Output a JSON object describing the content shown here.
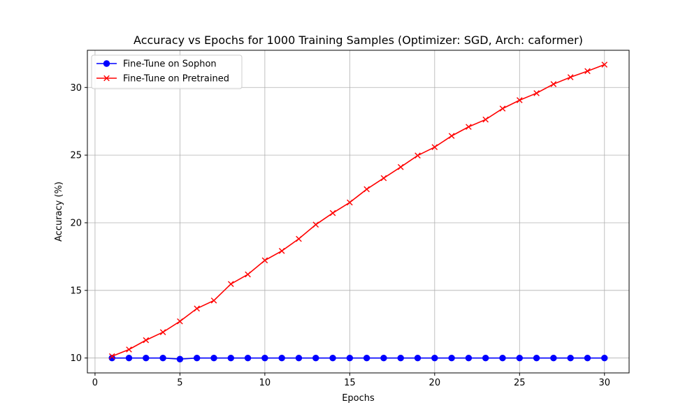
{
  "chart_data": {
    "type": "line",
    "title": "Accuracy vs Epochs for 1000 Training Samples (Optimizer: SGD, Arch: caformer)",
    "xlabel": "Epochs",
    "ylabel": "Accuracy (%)",
    "xlim": [
      -0.45,
      31.45
    ],
    "ylim": [
      8.9,
      32.75
    ],
    "xticks": [
      0,
      5,
      10,
      15,
      20,
      25,
      30
    ],
    "yticks": [
      10,
      15,
      20,
      25,
      30
    ],
    "grid": true,
    "legend_position": "top-left",
    "x": [
      1,
      2,
      3,
      4,
      5,
      6,
      7,
      8,
      9,
      10,
      11,
      12,
      13,
      14,
      15,
      16,
      17,
      18,
      19,
      20,
      21,
      22,
      23,
      24,
      25,
      26,
      27,
      28,
      29,
      30
    ],
    "series": [
      {
        "name": "Fine-Tune on Sophon",
        "color": "#0000ff",
        "marker": "circle",
        "values": [
          10.0,
          10.0,
          10.0,
          10.0,
          9.92,
          10.0,
          10.0,
          10.0,
          10.0,
          10.0,
          10.0,
          10.0,
          10.0,
          10.0,
          10.0,
          10.0,
          10.0,
          10.0,
          10.0,
          10.0,
          10.0,
          10.0,
          10.0,
          10.0,
          10.0,
          10.0,
          10.0,
          10.0,
          10.0,
          10.0
        ]
      },
      {
        "name": "Fine-Tune on Pretrained",
        "color": "#ff0000",
        "marker": "x",
        "values": [
          10.13,
          10.63,
          11.32,
          11.91,
          12.71,
          13.66,
          14.25,
          15.47,
          16.18,
          17.22,
          17.92,
          18.81,
          19.86,
          20.72,
          21.5,
          22.48,
          23.3,
          24.12,
          24.97,
          25.59,
          26.42,
          27.09,
          27.63,
          28.44,
          29.06,
          29.58,
          30.25,
          30.76,
          31.21,
          31.69
        ]
      }
    ]
  }
}
